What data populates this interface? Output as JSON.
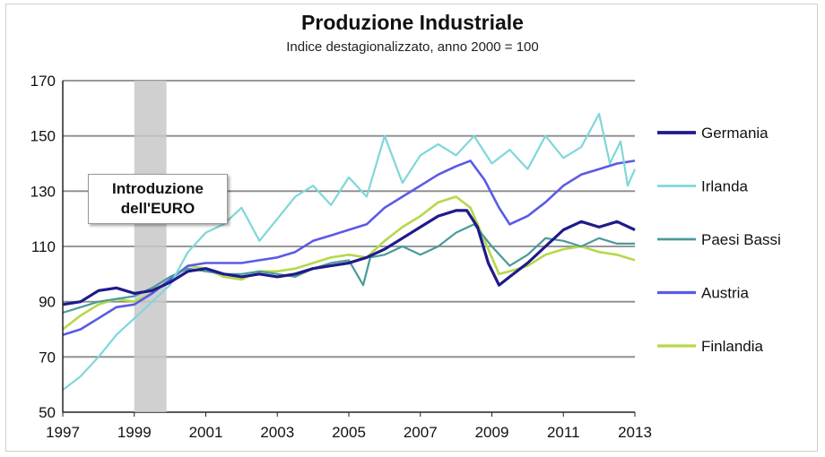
{
  "chart_data": {
    "type": "line",
    "title": "Produzione Industriale",
    "subtitle": "Indice destagionalizzato, anno 2000 = 100",
    "x_tick_labels": [
      "1997",
      "1999",
      "2001",
      "2003",
      "2005",
      "2007",
      "2009",
      "2011",
      "2013"
    ],
    "xlim": [
      1997,
      2013
    ],
    "y_ticks": [
      50,
      70,
      90,
      110,
      130,
      150,
      170
    ],
    "ylim": [
      50,
      170
    ],
    "grid": "horizontal",
    "legend_position": "right",
    "shaded_region": [
      1999,
      1999.9
    ],
    "annotation": [
      "Introduzione",
      "dell'EURO"
    ],
    "series": [
      {
        "name": "Germania",
        "color": "#1f1a8a",
        "width": 3.2,
        "points": [
          [
            1997,
            89
          ],
          [
            1997.5,
            90
          ],
          [
            1998,
            94
          ],
          [
            1998.5,
            95
          ],
          [
            1999,
            93
          ],
          [
            1999.5,
            94
          ],
          [
            2000,
            97
          ],
          [
            2000.5,
            101
          ],
          [
            2001,
            102
          ],
          [
            2001.5,
            100
          ],
          [
            2002,
            99
          ],
          [
            2002.5,
            100
          ],
          [
            2003,
            99
          ],
          [
            2003.5,
            100
          ],
          [
            2004,
            102
          ],
          [
            2004.5,
            103
          ],
          [
            2005,
            104
          ],
          [
            2005.5,
            106
          ],
          [
            2006,
            109
          ],
          [
            2006.5,
            113
          ],
          [
            2007,
            117
          ],
          [
            2007.5,
            121
          ],
          [
            2008,
            123
          ],
          [
            2008.3,
            123
          ],
          [
            2008.6,
            117
          ],
          [
            2008.9,
            104
          ],
          [
            2009.2,
            96
          ],
          [
            2009.5,
            99
          ],
          [
            2010,
            104
          ],
          [
            2010.5,
            110
          ],
          [
            2011,
            116
          ],
          [
            2011.5,
            119
          ],
          [
            2012,
            117
          ],
          [
            2012.5,
            119
          ],
          [
            2013,
            116
          ]
        ]
      },
      {
        "name": "Irlanda",
        "color": "#7fd7d9",
        "width": 2.2,
        "points": [
          [
            1997,
            58
          ],
          [
            1997.5,
            63
          ],
          [
            1998,
            70
          ],
          [
            1998.5,
            78
          ],
          [
            1999,
            84
          ],
          [
            1999.5,
            90
          ],
          [
            2000,
            96
          ],
          [
            2000.5,
            108
          ],
          [
            2001,
            115
          ],
          [
            2001.5,
            118
          ],
          [
            2002,
            124
          ],
          [
            2002.5,
            112
          ],
          [
            2003,
            120
          ],
          [
            2003.5,
            128
          ],
          [
            2004,
            132
          ],
          [
            2004.5,
            125
          ],
          [
            2005,
            135
          ],
          [
            2005.5,
            128
          ],
          [
            2006,
            150
          ],
          [
            2006.5,
            133
          ],
          [
            2007,
            143
          ],
          [
            2007.5,
            147
          ],
          [
            2008,
            143
          ],
          [
            2008.5,
            150
          ],
          [
            2009,
            140
          ],
          [
            2009.5,
            145
          ],
          [
            2010,
            138
          ],
          [
            2010.5,
            150
          ],
          [
            2011,
            142
          ],
          [
            2011.5,
            146
          ],
          [
            2012,
            158
          ],
          [
            2012.3,
            140
          ],
          [
            2012.6,
            148
          ],
          [
            2012.8,
            132
          ],
          [
            2013,
            138
          ]
        ]
      },
      {
        "name": "Paesi Bassi",
        "color": "#4a9a9a",
        "width": 2.2,
        "points": [
          [
            1997,
            86
          ],
          [
            1997.5,
            88
          ],
          [
            1998,
            90
          ],
          [
            1998.5,
            91
          ],
          [
            1999,
            92
          ],
          [
            1999.5,
            95
          ],
          [
            2000,
            99
          ],
          [
            2000.5,
            102
          ],
          [
            2001,
            101
          ],
          [
            2001.5,
            100
          ],
          [
            2002,
            100
          ],
          [
            2002.5,
            101
          ],
          [
            2003,
            100
          ],
          [
            2003.5,
            99
          ],
          [
            2004,
            102
          ],
          [
            2004.5,
            104
          ],
          [
            2005,
            105
          ],
          [
            2005.4,
            96
          ],
          [
            2005.6,
            106
          ],
          [
            2006,
            107
          ],
          [
            2006.5,
            110
          ],
          [
            2007,
            107
          ],
          [
            2007.5,
            110
          ],
          [
            2008,
            115
          ],
          [
            2008.5,
            118
          ],
          [
            2009,
            110
          ],
          [
            2009.5,
            103
          ],
          [
            2010,
            107
          ],
          [
            2010.5,
            113
          ],
          [
            2011,
            112
          ],
          [
            2011.5,
            110
          ],
          [
            2012,
            113
          ],
          [
            2012.5,
            111
          ],
          [
            2013,
            111
          ]
        ]
      },
      {
        "name": "Austria",
        "color": "#5a5ae6",
        "width": 2.6,
        "points": [
          [
            1997,
            78
          ],
          [
            1997.5,
            80
          ],
          [
            1998,
            84
          ],
          [
            1998.5,
            88
          ],
          [
            1999,
            89
          ],
          [
            1999.5,
            93
          ],
          [
            2000,
            98
          ],
          [
            2000.5,
            103
          ],
          [
            2001,
            104
          ],
          [
            2001.5,
            104
          ],
          [
            2002,
            104
          ],
          [
            2002.5,
            105
          ],
          [
            2003,
            106
          ],
          [
            2003.5,
            108
          ],
          [
            2004,
            112
          ],
          [
            2004.5,
            114
          ],
          [
            2005,
            116
          ],
          [
            2005.5,
            118
          ],
          [
            2006,
            124
          ],
          [
            2006.5,
            128
          ],
          [
            2007,
            132
          ],
          [
            2007.5,
            136
          ],
          [
            2008,
            139
          ],
          [
            2008.4,
            141
          ],
          [
            2008.8,
            134
          ],
          [
            2009.2,
            124
          ],
          [
            2009.5,
            118
          ],
          [
            2010,
            121
          ],
          [
            2010.5,
            126
          ],
          [
            2011,
            132
          ],
          [
            2011.5,
            136
          ],
          [
            2012,
            138
          ],
          [
            2012.5,
            140
          ],
          [
            2013,
            141
          ]
        ]
      },
      {
        "name": "Finlandia",
        "color": "#b6d84a",
        "width": 2.6,
        "points": [
          [
            1997,
            80
          ],
          [
            1997.5,
            85
          ],
          [
            1998,
            89
          ],
          [
            1998.5,
            91
          ],
          [
            1999,
            90
          ],
          [
            1999.5,
            93
          ],
          [
            2000,
            98
          ],
          [
            2000.5,
            103
          ],
          [
            2001,
            102
          ],
          [
            2001.5,
            99
          ],
          [
            2002,
            98
          ],
          [
            2002.5,
            101
          ],
          [
            2003,
            101
          ],
          [
            2003.5,
            102
          ],
          [
            2004,
            104
          ],
          [
            2004.5,
            106
          ],
          [
            2005,
            107
          ],
          [
            2005.5,
            106
          ],
          [
            2006,
            112
          ],
          [
            2006.5,
            117
          ],
          [
            2007,
            121
          ],
          [
            2007.5,
            126
          ],
          [
            2008,
            128
          ],
          [
            2008.4,
            124
          ],
          [
            2008.8,
            112
          ],
          [
            2009.2,
            100
          ],
          [
            2009.5,
            101
          ],
          [
            2010,
            103
          ],
          [
            2010.5,
            107
          ],
          [
            2011,
            109
          ],
          [
            2011.5,
            110
          ],
          [
            2012,
            108
          ],
          [
            2012.5,
            107
          ],
          [
            2013,
            105
          ]
        ]
      }
    ]
  }
}
